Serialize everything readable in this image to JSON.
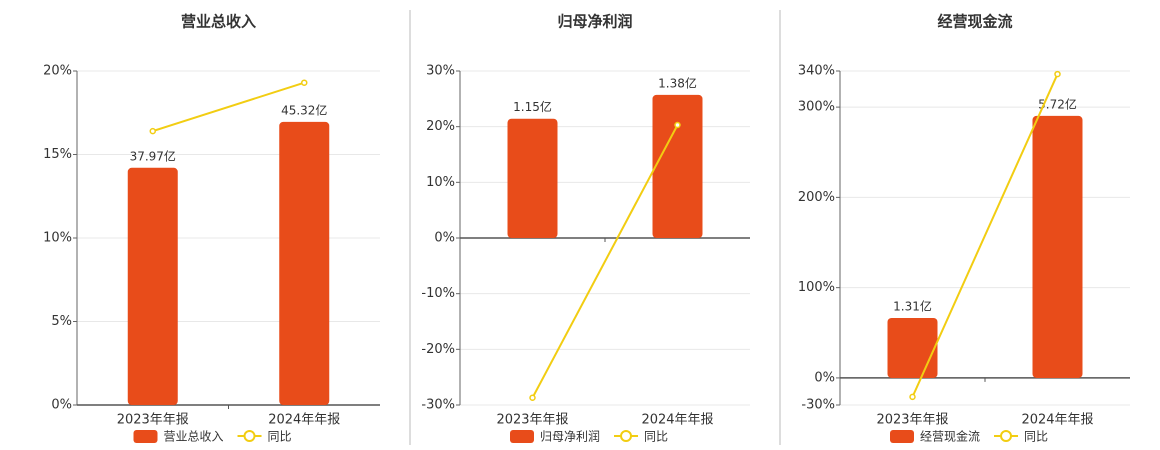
{
  "chart_data": [
    {
      "type": "bar",
      "title": "营业总收入",
      "categories": [
        "2023年年报",
        "2024年年报"
      ],
      "series": [
        {
          "name": "营业总收入",
          "color": "#e84c1a",
          "axis": "y2",
          "values": [
            37.97,
            45.32
          ],
          "value_labels": [
            "37.97亿",
            "45.32亿"
          ]
        },
        {
          "name": "同比",
          "type": "line",
          "color": "#f2cd12",
          "values": [
            16.4,
            19.3
          ]
        }
      ],
      "ylim": [
        0,
        20
      ],
      "yticks": [
        {
          "value": 0,
          "label": "0%"
        },
        {
          "value": 5,
          "label": "5%"
        },
        {
          "value": 10,
          "label": "10%"
        },
        {
          "value": 15,
          "label": "15%"
        },
        {
          "value": 20,
          "label": "20%"
        }
      ],
      "y2lim": [
        0,
        53.46
      ],
      "grid": true
    },
    {
      "type": "bar",
      "title": "归母净利润",
      "categories": [
        "2023年年报",
        "2024年年报"
      ],
      "series": [
        {
          "name": "归母净利润",
          "color": "#e84c1a",
          "axis": "y2",
          "values": [
            1.15,
            1.38
          ],
          "value_labels": [
            "1.15亿",
            "1.38亿"
          ]
        },
        {
          "name": "同比",
          "type": "line",
          "color": "#f2cd12",
          "values": [
            -28.7,
            20.3
          ]
        }
      ],
      "ylim": [
        -30,
        30
      ],
      "yticks": [
        {
          "value": -30,
          "label": "-30%"
        },
        {
          "value": -20,
          "label": "-20%"
        },
        {
          "value": -10,
          "label": "-10%"
        },
        {
          "value": 0,
          "label": "0%"
        },
        {
          "value": 10,
          "label": "10%"
        },
        {
          "value": 20,
          "label": "20%"
        },
        {
          "value": 30,
          "label": "30%"
        }
      ],
      "y2lim": [
        -1.61,
        1.61
      ],
      "grid": true
    },
    {
      "type": "bar",
      "title": "经营现金流",
      "categories": [
        "2023年年报",
        "2024年年报"
      ],
      "series": [
        {
          "name": "经营现金流",
          "color": "#e84c1a",
          "axis": "y2",
          "values": [
            1.31,
            5.72
          ],
          "value_labels": [
            "1.31亿",
            "5.72亿"
          ]
        },
        {
          "name": "同比",
          "type": "line",
          "color": "#f2cd12",
          "values": [
            -21,
            336.6
          ]
        }
      ],
      "ylim": [
        -30,
        340
      ],
      "yticks": [
        {
          "value": -30,
          "label": "-30%"
        },
        {
          "value": 0,
          "label": "0%"
        },
        {
          "value": 100,
          "label": "100%"
        },
        {
          "value": 200,
          "label": "200%"
        },
        {
          "value": 300,
          "label": "300%"
        },
        {
          "value": 340,
          "label": "340%"
        }
      ],
      "y2lim": [
        -0.59,
        6.7
      ],
      "grid": true
    }
  ]
}
